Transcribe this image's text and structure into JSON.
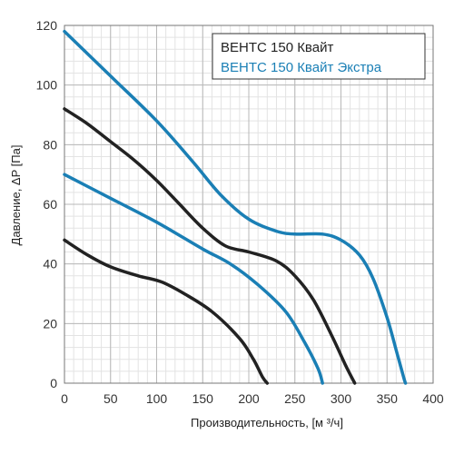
{
  "chart_data": {
    "type": "line",
    "xlabel": "Производительность, [м ³/ч]",
    "ylabel": "Давление, ΔP [Па]",
    "xlim": [
      0,
      400
    ],
    "ylim": [
      0,
      120
    ],
    "x_ticks": [
      0,
      50,
      100,
      150,
      200,
      250,
      300,
      350,
      400
    ],
    "y_ticks": [
      0,
      20,
      40,
      60,
      80,
      100,
      120
    ],
    "grid": true,
    "legend_position": "top-right",
    "legend": [
      {
        "label": "ВЕНТС 150 Квайт",
        "color": "#222222"
      },
      {
        "label": "ВЕНТС 150 Квайт Экстра",
        "color": "#1a7fb5"
      }
    ],
    "series": [
      {
        "legend_index": 0,
        "color": "#222222",
        "points": [
          [
            0,
            48
          ],
          [
            25,
            43
          ],
          [
            50,
            39
          ],
          [
            80,
            36
          ],
          [
            105,
            34
          ],
          [
            130,
            30
          ],
          [
            160,
            24
          ],
          [
            190,
            15
          ],
          [
            205,
            8
          ],
          [
            215,
            2
          ],
          [
            220,
            0
          ]
        ]
      },
      {
        "legend_index": 1,
        "color": "#1a7fb5",
        "points": [
          [
            0,
            70
          ],
          [
            50,
            62
          ],
          [
            100,
            54
          ],
          [
            150,
            45
          ],
          [
            180,
            40
          ],
          [
            210,
            33
          ],
          [
            240,
            24
          ],
          [
            260,
            14
          ],
          [
            275,
            5
          ],
          [
            280,
            0
          ]
        ]
      },
      {
        "legend_index": 0,
        "color": "#222222",
        "points": [
          [
            0,
            92
          ],
          [
            25,
            87
          ],
          [
            50,
            81
          ],
          [
            75,
            75
          ],
          [
            100,
            68
          ],
          [
            125,
            60
          ],
          [
            150,
            52
          ],
          [
            175,
            46
          ],
          [
            200,
            44
          ],
          [
            230,
            41
          ],
          [
            250,
            36
          ],
          [
            270,
            28
          ],
          [
            290,
            16
          ],
          [
            305,
            6
          ],
          [
            315,
            0
          ]
        ]
      },
      {
        "legend_index": 1,
        "color": "#1a7fb5",
        "points": [
          [
            0,
            118
          ],
          [
            50,
            103
          ],
          [
            100,
            88
          ],
          [
            140,
            74
          ],
          [
            170,
            63
          ],
          [
            200,
            55
          ],
          [
            230,
            51
          ],
          [
            250,
            50
          ],
          [
            280,
            50
          ],
          [
            300,
            48
          ],
          [
            320,
            43
          ],
          [
            335,
            35
          ],
          [
            350,
            22
          ],
          [
            360,
            11
          ],
          [
            368,
            2
          ],
          [
            370,
            0
          ]
        ]
      }
    ]
  }
}
